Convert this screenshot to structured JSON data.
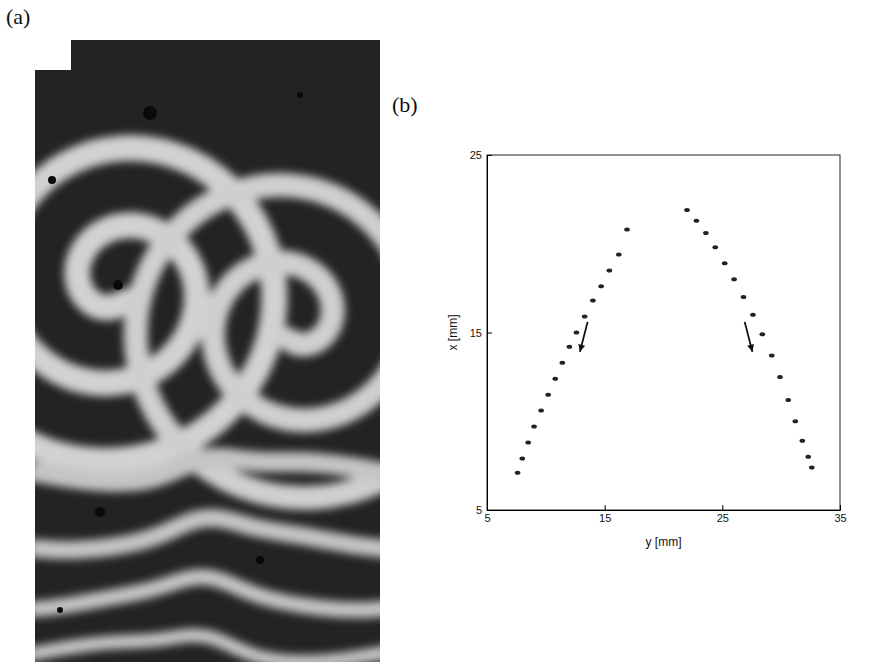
{
  "figure_a": {
    "label": "(a)"
  },
  "chart_data": {
    "type": "scatter",
    "label": "(b)",
    "x_label": "y [mm]",
    "y_label": "x [mm]",
    "xlim": [
      5,
      35
    ],
    "xticks": [
      5,
      15,
      25,
      35
    ],
    "ylim": [
      5,
      25
    ],
    "yticks": [
      5,
      15,
      25
    ],
    "marker": "dot",
    "series": [
      {
        "color": "#222222",
        "x": [
          7.6,
          8.0,
          8.5,
          9.0,
          9.6,
          10.2,
          10.8,
          11.4,
          12.0,
          12.6,
          13.3,
          14.0,
          14.7,
          15.4,
          16.2,
          16.9
        ],
        "values": [
          7.1,
          7.9,
          8.8,
          9.7,
          10.6,
          11.5,
          12.4,
          13.3,
          14.2,
          15.0,
          15.9,
          16.8,
          17.6,
          18.5,
          19.4,
          20.8
        ]
      },
      {
        "color": "#222222",
        "x": [
          22.0,
          22.8,
          23.6,
          24.4,
          25.2,
          26.0,
          26.8,
          27.6,
          28.4,
          29.2,
          29.9,
          30.6,
          31.2,
          31.8,
          32.3,
          32.6
        ],
        "values": [
          21.9,
          21.3,
          20.6,
          19.8,
          18.9,
          18.0,
          17.0,
          16.0,
          14.9,
          13.7,
          12.5,
          11.2,
          10.0,
          8.9,
          8.0,
          7.4
        ]
      }
    ]
  }
}
